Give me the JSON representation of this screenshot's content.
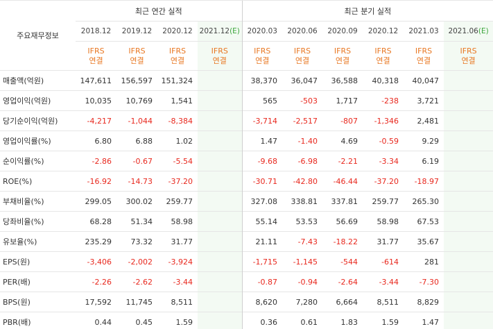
{
  "header": {
    "corner_label": "주요재무정보",
    "annual_title": "최근 연간 실적",
    "quarter_title": "최근 분기 실적",
    "ifrs_line1": "IFRS",
    "ifrs_line2": "연결"
  },
  "annual_periods": [
    "2018.12",
    "2019.12",
    "2020.12",
    "2021.12"
  ],
  "annual_estimate_flag": "(E)",
  "quarter_periods": [
    "2020.03",
    "2020.06",
    "2020.09",
    "2020.12",
    "2021.03",
    "2021.06"
  ],
  "quarter_estimate_flag": "(E)",
  "rows": [
    {
      "label": "매출액(억원)",
      "values": [
        "147,611",
        "156,597",
        "151,324",
        "",
        "38,370",
        "36,047",
        "36,588",
        "40,318",
        "40,047",
        ""
      ]
    },
    {
      "label": "영업이익(억원)",
      "values": [
        "10,035",
        "10,769",
        "1,541",
        "",
        "565",
        "-503",
        "1,717",
        "-238",
        "3,721",
        ""
      ]
    },
    {
      "label": "당기순이익(억원)",
      "values": [
        "-4,217",
        "-1,044",
        "-8,384",
        "",
        "-3,714",
        "-2,517",
        "-807",
        "-1,346",
        "2,481",
        ""
      ]
    },
    {
      "label": "영업이익률(%)",
      "values": [
        "6.80",
        "6.88",
        "1.02",
        "",
        "1.47",
        "-1.40",
        "4.69",
        "-0.59",
        "9.29",
        ""
      ]
    },
    {
      "label": "순이익률(%)",
      "values": [
        "-2.86",
        "-0.67",
        "-5.54",
        "",
        "-9.68",
        "-6.98",
        "-2.21",
        "-3.34",
        "6.19",
        ""
      ]
    },
    {
      "label": "ROE(%)",
      "values": [
        "-16.92",
        "-14.73",
        "-37.20",
        "",
        "-30.71",
        "-42.80",
        "-46.44",
        "-37.20",
        "-18.97",
        ""
      ]
    },
    {
      "label": "부채비율(%)",
      "values": [
        "299.05",
        "300.02",
        "259.77",
        "",
        "327.08",
        "338.81",
        "337.81",
        "259.77",
        "265.30",
        ""
      ]
    },
    {
      "label": "당좌비율(%)",
      "values": [
        "68.28",
        "51.34",
        "58.98",
        "",
        "55.14",
        "53.53",
        "56.69",
        "58.98",
        "67.53",
        ""
      ]
    },
    {
      "label": "유보율(%)",
      "values": [
        "235.29",
        "73.32",
        "31.77",
        "",
        "21.11",
        "-7.43",
        "-18.22",
        "31.77",
        "35.67",
        ""
      ]
    },
    {
      "label": "EPS(원)",
      "values": [
        "-3,406",
        "-2,002",
        "-3,924",
        "",
        "-1,715",
        "-1,145",
        "-544",
        "-614",
        "281",
        ""
      ]
    },
    {
      "label": "PER(배)",
      "values": [
        "-2.26",
        "-2.62",
        "-3.44",
        "",
        "-0.87",
        "-0.94",
        "-2.64",
        "-3.44",
        "-7.30",
        ""
      ]
    },
    {
      "label": "BPS(원)",
      "values": [
        "17,592",
        "11,745",
        "8,511",
        "",
        "8,620",
        "7,280",
        "6,664",
        "8,511",
        "8,829",
        ""
      ]
    },
    {
      "label": "PBR(배)",
      "values": [
        "0.44",
        "0.45",
        "1.59",
        "",
        "0.36",
        "0.61",
        "1.83",
        "1.59",
        "1.47",
        ""
      ]
    }
  ],
  "colors": {
    "negative": "#e8281e",
    "ifrs": "#e87722",
    "estimate_flag": "#3aa53a",
    "estimate_bg": "#f3faf3"
  }
}
